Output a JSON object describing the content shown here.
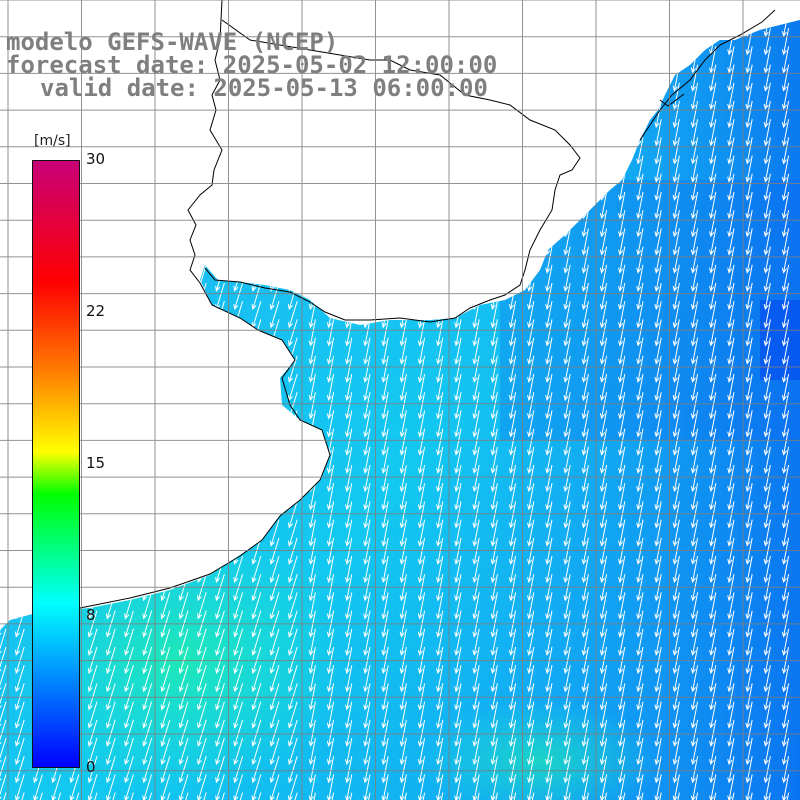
{
  "header": {
    "line1": "modelo GEFS-WAVE (NCEP)",
    "line2": "forecast date: 2025-05-02 12:00:00",
    "line3": "valid date: 2025-05-13 06:00:00"
  },
  "colorbar": {
    "units": "[m/s]",
    "ticks": [
      "30",
      "22",
      "15",
      "8",
      "0"
    ],
    "tick_values": [
      30,
      22,
      15,
      8,
      0
    ],
    "colors": [
      "#0000ff",
      "#00ffff",
      "#00ff00",
      "#ffff00",
      "#ff8000",
      "#ff0000",
      "#c80078"
    ]
  },
  "map": {
    "field": "wind speed and direction",
    "land_color": "#ffffff",
    "grid_color": "#7f7f7f",
    "coastline_color": "#000000",
    "vector_color": "#ffffff",
    "dominant_speed_range_ms": [
      5,
      10
    ],
    "dominant_direction": "toward south-southwest"
  }
}
